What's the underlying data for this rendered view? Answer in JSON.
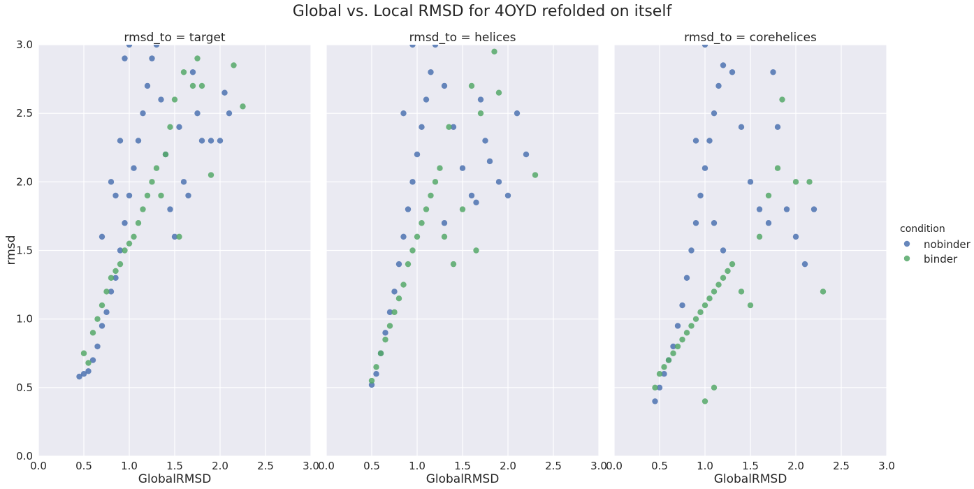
{
  "figure": {
    "title": "Global vs. Local RMSD for 4OYD refolded on itself"
  },
  "chart_data": {
    "type": "scatter",
    "title": "Global vs. Local RMSD for 4OYD refolded on itself",
    "xlabel": "GlobalRMSD",
    "ylabel": "rmsd",
    "xlim": [
      0,
      3.0
    ],
    "ylim": [
      0,
      3.0
    ],
    "xticks": [
      "0.0",
      "0.5",
      "1.0",
      "1.5",
      "2.0",
      "2.5",
      "3.0"
    ],
    "yticks": [
      "0.0",
      "0.5",
      "1.0",
      "1.5",
      "2.0",
      "2.5",
      "3.0"
    ],
    "grid": true,
    "legend": {
      "title": "condition",
      "placement": "right",
      "entries": [
        {
          "name": "nobinder",
          "color": "#4c72b0"
        },
        {
          "name": "binder",
          "color": "#55a868"
        }
      ]
    },
    "panels": [
      {
        "title": "rmsd_to = target",
        "series": [
          {
            "name": "nobinder",
            "color": "#4c72b0",
            "points": [
              [
                0.45,
                0.58
              ],
              [
                0.5,
                0.6
              ],
              [
                0.55,
                0.62
              ],
              [
                0.6,
                0.7
              ],
              [
                0.65,
                0.8
              ],
              [
                0.7,
                0.95
              ],
              [
                0.75,
                1.05
              ],
              [
                0.8,
                1.2
              ],
              [
                0.85,
                1.3
              ],
              [
                0.9,
                1.5
              ],
              [
                0.95,
                1.7
              ],
              [
                1.0,
                1.9
              ],
              [
                1.05,
                2.1
              ],
              [
                1.1,
                2.3
              ],
              [
                1.15,
                2.5
              ],
              [
                1.2,
                2.7
              ],
              [
                0.95,
                2.9
              ],
              [
                1.0,
                3.0
              ],
              [
                1.3,
                3.0
              ],
              [
                1.35,
                2.6
              ],
              [
                1.4,
                2.2
              ],
              [
                1.45,
                1.8
              ],
              [
                1.5,
                1.6
              ],
              [
                1.55,
                2.4
              ],
              [
                1.6,
                2.0
              ],
              [
                1.7,
                2.8
              ],
              [
                1.75,
                2.5
              ],
              [
                1.8,
                2.3
              ],
              [
                1.9,
                2.3
              ],
              [
                2.0,
                2.3
              ],
              [
                2.05,
                2.65
              ],
              [
                2.1,
                2.5
              ],
              [
                1.65,
                1.9
              ],
              [
                1.25,
                2.9
              ],
              [
                0.85,
                1.9
              ],
              [
                0.9,
                2.3
              ],
              [
                0.7,
                1.6
              ],
              [
                0.8,
                2.0
              ]
            ]
          },
          {
            "name": "binder",
            "color": "#55a868",
            "points": [
              [
                0.5,
                0.75
              ],
              [
                0.55,
                0.68
              ],
              [
                0.6,
                0.9
              ],
              [
                0.65,
                1.0
              ],
              [
                0.7,
                1.1
              ],
              [
                0.75,
                1.2
              ],
              [
                0.8,
                1.3
              ],
              [
                0.85,
                1.35
              ],
              [
                0.9,
                1.4
              ],
              [
                0.95,
                1.5
              ],
              [
                1.0,
                1.55
              ],
              [
                1.05,
                1.6
              ],
              [
                1.1,
                1.7
              ],
              [
                1.15,
                1.8
              ],
              [
                1.2,
                1.9
              ],
              [
                1.25,
                2.0
              ],
              [
                1.3,
                2.1
              ],
              [
                1.35,
                1.9
              ],
              [
                1.4,
                2.2
              ],
              [
                1.45,
                2.4
              ],
              [
                1.5,
                2.6
              ],
              [
                1.55,
                1.6
              ],
              [
                1.6,
                2.8
              ],
              [
                1.7,
                2.7
              ],
              [
                1.8,
                2.7
              ],
              [
                1.9,
                2.05
              ],
              [
                2.15,
                2.85
              ],
              [
                2.25,
                2.55
              ],
              [
                1.75,
                2.9
              ]
            ]
          }
        ]
      },
      {
        "title": "rmsd_to = helices",
        "series": [
          {
            "name": "nobinder",
            "color": "#4c72b0",
            "points": [
              [
                0.5,
                0.52
              ],
              [
                0.55,
                0.6
              ],
              [
                0.6,
                0.75
              ],
              [
                0.65,
                0.9
              ],
              [
                0.7,
                1.05
              ],
              [
                0.75,
                1.2
              ],
              [
                0.8,
                1.4
              ],
              [
                0.85,
                1.6
              ],
              [
                0.9,
                1.8
              ],
              [
                0.95,
                2.0
              ],
              [
                1.0,
                2.2
              ],
              [
                1.05,
                2.4
              ],
              [
                1.1,
                2.6
              ],
              [
                1.15,
                2.8
              ],
              [
                1.2,
                3.0
              ],
              [
                0.95,
                3.0
              ],
              [
                1.3,
                2.7
              ],
              [
                1.4,
                2.4
              ],
              [
                1.5,
                2.1
              ],
              [
                1.6,
                1.9
              ],
              [
                1.65,
                1.85
              ],
              [
                1.7,
                2.6
              ],
              [
                1.75,
                2.3
              ],
              [
                1.8,
                2.15
              ],
              [
                1.9,
                2.0
              ],
              [
                2.0,
                1.9
              ],
              [
                2.1,
                2.5
              ],
              [
                2.2,
                2.2
              ],
              [
                1.3,
                1.7
              ],
              [
                0.85,
                2.5
              ]
            ]
          },
          {
            "name": "binder",
            "color": "#55a868",
            "points": [
              [
                0.5,
                0.55
              ],
              [
                0.55,
                0.65
              ],
              [
                0.6,
                0.75
              ],
              [
                0.65,
                0.85
              ],
              [
                0.7,
                0.95
              ],
              [
                0.75,
                1.05
              ],
              [
                0.8,
                1.15
              ],
              [
                0.85,
                1.25
              ],
              [
                0.9,
                1.4
              ],
              [
                0.95,
                1.5
              ],
              [
                1.0,
                1.6
              ],
              [
                1.05,
                1.7
              ],
              [
                1.1,
                1.8
              ],
              [
                1.15,
                1.9
              ],
              [
                1.2,
                2.0
              ],
              [
                1.25,
                2.1
              ],
              [
                1.3,
                1.6
              ],
              [
                1.4,
                1.4
              ],
              [
                1.5,
                1.8
              ],
              [
                1.6,
                2.7
              ],
              [
                1.65,
                1.5
              ],
              [
                1.7,
                2.5
              ],
              [
                1.85,
                2.95
              ],
              [
                1.9,
                2.65
              ],
              [
                2.3,
                2.05
              ],
              [
                1.35,
                2.4
              ]
            ]
          }
        ]
      },
      {
        "title": "rmsd_to = corehelices",
        "series": [
          {
            "name": "nobinder",
            "color": "#4c72b0",
            "points": [
              [
                0.45,
                0.4
              ],
              [
                0.5,
                0.5
              ],
              [
                0.55,
                0.6
              ],
              [
                0.6,
                0.7
              ],
              [
                0.65,
                0.8
              ],
              [
                0.7,
                0.95
              ],
              [
                0.75,
                1.1
              ],
              [
                0.8,
                1.3
              ],
              [
                0.85,
                1.5
              ],
              [
                0.9,
                1.7
              ],
              [
                0.95,
                1.9
              ],
              [
                1.0,
                2.1
              ],
              [
                1.05,
                2.3
              ],
              [
                1.1,
                2.5
              ],
              [
                1.15,
                2.7
              ],
              [
                1.2,
                2.85
              ],
              [
                1.0,
                3.0
              ],
              [
                1.3,
                2.8
              ],
              [
                1.4,
                2.4
              ],
              [
                1.5,
                2.0
              ],
              [
                1.6,
                1.8
              ],
              [
                1.7,
                1.7
              ],
              [
                1.8,
                2.4
              ],
              [
                1.9,
                1.8
              ],
              [
                2.0,
                1.6
              ],
              [
                2.1,
                1.4
              ],
              [
                2.2,
                1.8
              ],
              [
                1.75,
                2.8
              ],
              [
                1.1,
                1.7
              ],
              [
                1.2,
                1.5
              ],
              [
                0.9,
                2.3
              ]
            ]
          },
          {
            "name": "binder",
            "color": "#55a868",
            "points": [
              [
                0.45,
                0.5
              ],
              [
                0.5,
                0.6
              ],
              [
                0.55,
                0.65
              ],
              [
                0.6,
                0.7
              ],
              [
                0.65,
                0.75
              ],
              [
                0.7,
                0.8
              ],
              [
                0.75,
                0.85
              ],
              [
                0.8,
                0.9
              ],
              [
                0.85,
                0.95
              ],
              [
                0.9,
                1.0
              ],
              [
                0.95,
                1.05
              ],
              [
                1.0,
                1.1
              ],
              [
                1.05,
                1.15
              ],
              [
                1.1,
                1.2
              ],
              [
                1.15,
                1.25
              ],
              [
                1.2,
                1.3
              ],
              [
                1.25,
                1.35
              ],
              [
                1.3,
                1.4
              ],
              [
                1.4,
                1.2
              ],
              [
                1.5,
                1.1
              ],
              [
                1.6,
                1.6
              ],
              [
                1.7,
                1.9
              ],
              [
                1.8,
                2.1
              ],
              [
                1.85,
                2.6
              ],
              [
                2.0,
                2.0
              ],
              [
                2.15,
                2.0
              ],
              [
                2.3,
                1.2
              ],
              [
                1.0,
                0.4
              ],
              [
                1.1,
                0.5
              ]
            ]
          }
        ]
      }
    ]
  }
}
